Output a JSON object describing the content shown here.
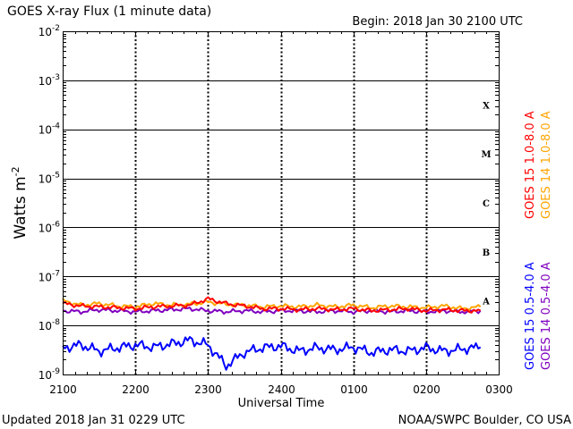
{
  "header": {
    "title": "GOES X-ray Flux (1 minute data)",
    "begin": "Begin: 2018 Jan 30 2100 UTC"
  },
  "footer": {
    "updated": "Updated 2018 Jan 31 0229 UTC",
    "credit": "NOAA/SWPC Boulder, CO USA"
  },
  "chart_data": {
    "type": "line",
    "title": "GOES X-ray Flux (1 minute data)",
    "xlabel": "Universal Time",
    "ylabel": "Watts m",
    "ylabel_exponent": "-2",
    "y_scale": "log",
    "ylim_exponents": [
      -9,
      -2
    ],
    "xlim_hours": [
      21,
      27
    ],
    "x_ticks": [
      "2100",
      "2200",
      "2300",
      "2400",
      "0100",
      "0200",
      "0300"
    ],
    "y_ticks": [
      {
        "base": "10",
        "exp": "-9",
        "value": 1e-09
      },
      {
        "base": "10",
        "exp": "-8",
        "value": 1e-08
      },
      {
        "base": "10",
        "exp": "-7",
        "value": 1e-07
      },
      {
        "base": "10",
        "exp": "-6",
        "value": 1e-06
      },
      {
        "base": "10",
        "exp": "-5",
        "value": 1e-05
      },
      {
        "base": "10",
        "exp": "-4",
        "value": 0.0001
      },
      {
        "base": "10",
        "exp": "-3",
        "value": 0.001
      },
      {
        "base": "10",
        "exp": "-2",
        "value": 0.01
      }
    ],
    "flare_classes": [
      {
        "label": "A",
        "value": 1e-08
      },
      {
        "label": "B",
        "value": 1e-07
      },
      {
        "label": "C",
        "value": 1e-06
      },
      {
        "label": "M",
        "value": 1e-05
      },
      {
        "label": "X",
        "value": 0.0001
      }
    ],
    "legend": [
      {
        "name": "GOES 15 1.0-8.0 A",
        "color": "#ff0000"
      },
      {
        "name": "GOES 14 1.0-8.0 A",
        "color": "#ffa500"
      },
      {
        "name": "GOES 15 0.5-4.0 A",
        "color": "#0000ff"
      },
      {
        "name": "GOES 14 0.5-4.0 A",
        "color": "#7f00bf"
      }
    ],
    "series": [
      {
        "name": "GOES 15 1.0-8.0 A",
        "color": "#ff0000",
        "x": [
          "2100",
          "2115",
          "2130",
          "2145",
          "2200",
          "2215",
          "2230",
          "2245",
          "2300",
          "2315",
          "2330",
          "2345",
          "2400",
          "0015",
          "0030",
          "0045",
          "0100",
          "0115",
          "0130",
          "0145",
          "0200",
          "0215",
          "0230",
          "0245"
        ],
        "values": [
          2.8e-08,
          2.5e-08,
          2.4e-08,
          2.3e-08,
          2.2e-08,
          2.4e-08,
          2.5e-08,
          2.6e-08,
          3.5e-08,
          2.8e-08,
          2.5e-08,
          2.2e-08,
          2.2e-08,
          2.1e-08,
          2.2e-08,
          2.1e-08,
          2.2e-08,
          2e-08,
          2.1e-08,
          2.2e-08,
          2e-08,
          2.1e-08,
          2e-08,
          2e-08
        ]
      },
      {
        "name": "GOES 14 1.0-8.0 A",
        "color": "#ffa500",
        "x": [
          "2100",
          "2115",
          "2130",
          "2145",
          "2200",
          "2215",
          "2230",
          "2245",
          "2300",
          "2315",
          "2330",
          "2345",
          "2400",
          "0015",
          "0030",
          "0045",
          "0100",
          "0115",
          "0130",
          "0145",
          "0200",
          "0215",
          "0230",
          "0245"
        ],
        "values": [
          3.2e-08,
          2.6e-08,
          2.8e-08,
          2.5e-08,
          2.4e-08,
          2.8e-08,
          2.6e-08,
          2.7e-08,
          3e-08,
          2.7e-08,
          2.6e-08,
          2.4e-08,
          2.5e-08,
          2.4e-08,
          2.6e-08,
          2.4e-08,
          2.6e-08,
          2.3e-08,
          2.5e-08,
          2.4e-08,
          2.3e-08,
          2.5e-08,
          2.2e-08,
          2.4e-08
        ]
      },
      {
        "name": "GOES 15 0.5-4.0 A",
        "color": "#0000ff",
        "x": [
          "2100",
          "2115",
          "2130",
          "2145",
          "2200",
          "2215",
          "2230",
          "2245",
          "2300",
          "2315",
          "2330",
          "2345",
          "2400",
          "0015",
          "0030",
          "0045",
          "0100",
          "0115",
          "0130",
          "0145",
          "0200",
          "0215",
          "0230",
          "0245"
        ],
        "values": [
          3.5e-09,
          4e-09,
          3e-09,
          3.5e-09,
          4e-09,
          3.6e-09,
          4.2e-09,
          5e-09,
          4e-09,
          1.5e-09,
          2.8e-09,
          3.5e-09,
          3.8e-09,
          3e-09,
          3.5e-09,
          3.2e-09,
          3.6e-09,
          2.8e-09,
          3.2e-09,
          3e-09,
          3.5e-09,
          3e-09,
          3.3e-09,
          3.6e-09
        ]
      },
      {
        "name": "GOES 14 0.5-4.0 A",
        "color": "#7f00bf",
        "x": [
          "2100",
          "2115",
          "2130",
          "2145",
          "2200",
          "2215",
          "2230",
          "2245",
          "2300",
          "2315",
          "2330",
          "2345",
          "2400",
          "0015",
          "0030",
          "0045",
          "0100",
          "0115",
          "0130",
          "0145",
          "0200",
          "0215",
          "0230",
          "0245"
        ],
        "values": [
          2e-08,
          1.9e-08,
          2.1e-08,
          2e-08,
          1.9e-08,
          2e-08,
          2.1e-08,
          2.2e-08,
          2e-08,
          1.9e-08,
          2e-08,
          1.9e-08,
          2e-08,
          2e-08,
          1.9e-08,
          2e-08,
          1.9e-08,
          2e-08,
          1.9e-08,
          2e-08,
          1.9e-08,
          2e-08,
          1.9e-08,
          2e-08
        ]
      }
    ]
  }
}
